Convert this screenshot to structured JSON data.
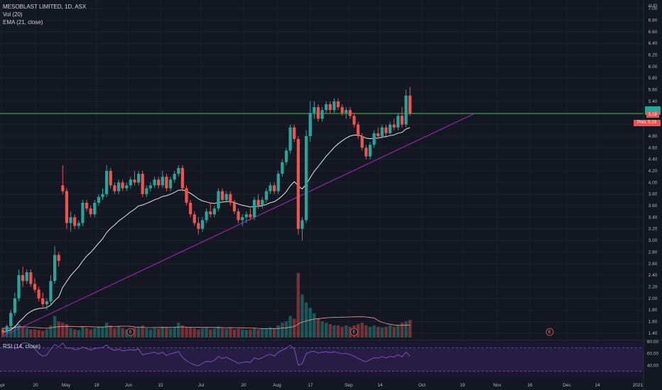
{
  "header": {
    "symbol_line": "MESOBLAST LIMITED, 1D, ASX",
    "volume_line": "Vol (20)",
    "ema_line": "EMA (21, close)"
  },
  "rsi_header": "RSI (14, close)",
  "colors": {
    "background": "#131722",
    "grid": "#1e222d",
    "up": "#26a69a",
    "down": "#ef5350",
    "ema": "#e6e6e6",
    "trendline": "#9c27b0",
    "horizontal_line": "#4caf50",
    "rsi": "#7e57c2",
    "volume_ma": "#ef9a9a"
  },
  "chart_data": {
    "type": "candlestick",
    "currency": "AUD",
    "y_ticks": [
      "7.00",
      "6.80",
      "6.60",
      "6.40",
      "6.20",
      "6.00",
      "5.80",
      "5.60",
      "5.40",
      "5.20",
      "5.00",
      "4.80",
      "4.60",
      "4.40",
      "4.20",
      "4.00",
      "3.80",
      "3.60",
      "3.40",
      "3.20",
      "3.00",
      "2.80",
      "2.60",
      "2.40",
      "2.20",
      "2.00",
      "1.80",
      "1.60",
      "1.40"
    ],
    "y_range": [
      1.3,
      7.1
    ],
    "x_ticks": [
      "Apr",
      "20",
      "May",
      "18",
      "Jun",
      "15",
      "Jul",
      "20",
      "Aug",
      "17",
      "Sep",
      "14",
      "Oct",
      "19",
      "Nov",
      "16",
      "Dec",
      "14",
      "2021"
    ],
    "price_tag": "5.19",
    "prev_tag": "Prev. 5.19",
    "horizontal_level": 5.19,
    "trendline": {
      "from": {
        "bar": 0,
        "price": 1.35
      },
      "to": {
        "bar": 126,
        "price": 5.19
      }
    },
    "earnings_markers": [
      {
        "label": "E",
        "bar": 32
      },
      {
        "label": "E",
        "bar": 88
      },
      {
        "label": "E",
        "bar": 137
      }
    ],
    "candles": [
      [
        1.45,
        1.5,
        1.38,
        1.42
      ],
      [
        1.42,
        1.55,
        1.4,
        1.52
      ],
      [
        1.52,
        1.8,
        1.48,
        1.75
      ],
      [
        1.75,
        2.1,
        1.7,
        2.0
      ],
      [
        2.0,
        2.5,
        1.95,
        2.4
      ],
      [
        2.4,
        2.55,
        2.2,
        2.3
      ],
      [
        2.3,
        2.5,
        2.25,
        2.45
      ],
      [
        2.45,
        2.5,
        2.2,
        2.25
      ],
      [
        2.25,
        2.35,
        2.1,
        2.15
      ],
      [
        2.15,
        2.2,
        1.95,
        2.0
      ],
      [
        2.0,
        2.1,
        1.85,
        1.9
      ],
      [
        1.9,
        2.0,
        1.8,
        1.95
      ],
      [
        1.95,
        2.4,
        1.9,
        2.3
      ],
      [
        2.3,
        2.9,
        2.25,
        2.75
      ],
      [
        2.75,
        2.8,
        2.55,
        2.65
      ],
      [
        3.95,
        4.3,
        3.8,
        3.85
      ],
      [
        3.85,
        3.9,
        3.2,
        3.3
      ],
      [
        3.3,
        3.5,
        3.15,
        3.4
      ],
      [
        3.4,
        3.45,
        3.2,
        3.25
      ],
      [
        3.25,
        3.35,
        3.2,
        3.3
      ],
      [
        3.3,
        3.7,
        3.25,
        3.65
      ],
      [
        3.65,
        3.7,
        3.5,
        3.55
      ],
      [
        3.55,
        3.6,
        3.4,
        3.45
      ],
      [
        3.45,
        3.7,
        3.4,
        3.65
      ],
      [
        3.65,
        3.8,
        3.6,
        3.75
      ],
      [
        3.75,
        3.9,
        3.7,
        3.8
      ],
      [
        3.8,
        4.3,
        3.75,
        4.2
      ],
      [
        4.2,
        4.25,
        3.9,
        3.95
      ],
      [
        3.95,
        4.0,
        3.8,
        3.85
      ],
      [
        3.85,
        4.05,
        3.8,
        4.0
      ],
      [
        4.0,
        4.05,
        3.85,
        3.9
      ],
      [
        3.9,
        4.0,
        3.85,
        3.95
      ],
      [
        3.95,
        4.1,
        3.9,
        4.05
      ],
      [
        4.05,
        4.2,
        3.95,
        4.0
      ],
      [
        4.0,
        4.2,
        3.95,
        4.15
      ],
      [
        4.15,
        4.2,
        3.75,
        3.8
      ],
      [
        3.8,
        3.95,
        3.75,
        3.9
      ],
      [
        3.9,
        4.0,
        3.85,
        3.95
      ],
      [
        3.95,
        4.1,
        3.9,
        4.05
      ],
      [
        4.05,
        4.1,
        3.9,
        3.95
      ],
      [
        3.95,
        4.2,
        3.9,
        4.1
      ],
      [
        4.1,
        4.15,
        3.85,
        3.9
      ],
      [
        3.9,
        4.1,
        3.85,
        4.05
      ],
      [
        4.05,
        4.2,
        4.0,
        4.15
      ],
      [
        4.15,
        4.3,
        4.1,
        4.25
      ],
      [
        4.25,
        4.3,
        3.85,
        3.9
      ],
      [
        3.9,
        3.95,
        3.6,
        3.65
      ],
      [
        3.65,
        3.7,
        3.4,
        3.45
      ],
      [
        3.45,
        3.5,
        3.25,
        3.3
      ],
      [
        3.3,
        3.4,
        3.1,
        3.2
      ],
      [
        3.2,
        3.4,
        3.15,
        3.35
      ],
      [
        3.35,
        3.55,
        3.3,
        3.5
      ],
      [
        3.5,
        3.65,
        3.4,
        3.45
      ],
      [
        3.45,
        3.6,
        3.4,
        3.55
      ],
      [
        3.55,
        3.9,
        3.5,
        3.85
      ],
      [
        3.85,
        3.9,
        3.65,
        3.7
      ],
      [
        3.7,
        3.85,
        3.65,
        3.8
      ],
      [
        3.8,
        3.85,
        3.6,
        3.65
      ],
      [
        3.65,
        3.7,
        3.45,
        3.5
      ],
      [
        3.5,
        3.55,
        3.3,
        3.35
      ],
      [
        3.35,
        3.45,
        3.25,
        3.4
      ],
      [
        3.4,
        3.5,
        3.3,
        3.45
      ],
      [
        3.45,
        3.55,
        3.35,
        3.4
      ],
      [
        3.4,
        3.75,
        3.35,
        3.7
      ],
      [
        3.7,
        3.8,
        3.55,
        3.6
      ],
      [
        3.6,
        3.75,
        3.55,
        3.7
      ],
      [
        3.7,
        3.9,
        3.65,
        3.85
      ],
      [
        3.85,
        4.0,
        3.8,
        3.95
      ],
      [
        3.95,
        4.0,
        3.8,
        3.85
      ],
      [
        3.85,
        4.2,
        3.8,
        4.15
      ],
      [
        4.15,
        4.4,
        4.1,
        4.35
      ],
      [
        4.35,
        4.6,
        4.3,
        4.55
      ],
      [
        4.55,
        5.0,
        4.5,
        4.95
      ],
      [
        4.95,
        5.0,
        4.7,
        4.75
      ],
      [
        4.75,
        4.8,
        3.1,
        3.2
      ],
      [
        3.2,
        3.4,
        3.0,
        3.35
      ],
      [
        3.35,
        4.9,
        3.3,
        4.8
      ],
      [
        4.8,
        5.4,
        4.7,
        5.2
      ],
      [
        5.2,
        5.4,
        5.1,
        5.3
      ],
      [
        5.3,
        5.35,
        5.05,
        5.1
      ],
      [
        5.1,
        5.3,
        5.05,
        5.25
      ],
      [
        5.25,
        5.4,
        5.2,
        5.35
      ],
      [
        5.35,
        5.4,
        5.2,
        5.25
      ],
      [
        5.25,
        5.45,
        5.2,
        5.4
      ],
      [
        5.4,
        5.45,
        5.25,
        5.3
      ],
      [
        5.3,
        5.35,
        5.15,
        5.2
      ],
      [
        5.2,
        5.3,
        5.1,
        5.25
      ],
      [
        5.25,
        5.3,
        5.1,
        5.15
      ],
      [
        5.15,
        5.2,
        4.95,
        5.0
      ],
      [
        5.0,
        5.05,
        4.75,
        4.8
      ],
      [
        4.8,
        4.85,
        4.55,
        4.6
      ],
      [
        4.6,
        4.65,
        4.4,
        4.45
      ],
      [
        4.45,
        4.7,
        4.4,
        4.65
      ],
      [
        4.65,
        4.9,
        4.6,
        4.85
      ],
      [
        4.85,
        4.95,
        4.75,
        4.8
      ],
      [
        4.8,
        5.0,
        4.75,
        4.95
      ],
      [
        4.95,
        5.0,
        4.8,
        4.85
      ],
      [
        4.85,
        5.05,
        4.8,
        5.0
      ],
      [
        5.0,
        5.1,
        4.9,
        4.95
      ],
      [
        4.95,
        5.2,
        4.9,
        5.15
      ],
      [
        5.15,
        5.3,
        4.95,
        5.0
      ],
      [
        5.0,
        5.6,
        4.95,
        5.5
      ],
      [
        5.5,
        5.65,
        5.15,
        5.19
      ]
    ],
    "volume_bars_relative": [
      0.35,
      0.3,
      0.4,
      0.45,
      0.5,
      0.4,
      0.35,
      0.3,
      0.3,
      0.28,
      0.25,
      0.3,
      0.45,
      0.8,
      0.6,
      0.55,
      0.5,
      0.35,
      0.3,
      0.28,
      0.4,
      0.35,
      0.3,
      0.35,
      0.4,
      0.38,
      0.55,
      0.45,
      0.35,
      0.4,
      0.35,
      0.3,
      0.35,
      0.38,
      0.4,
      0.45,
      0.35,
      0.3,
      0.35,
      0.33,
      0.4,
      0.38,
      0.35,
      0.4,
      0.55,
      0.45,
      0.4,
      0.38,
      0.35,
      0.3,
      0.33,
      0.35,
      0.3,
      0.33,
      0.4,
      0.35,
      0.33,
      0.35,
      0.3,
      0.33,
      0.3,
      0.28,
      0.3,
      0.35,
      0.3,
      0.33,
      0.35,
      0.38,
      0.35,
      0.45,
      0.55,
      0.6,
      0.8,
      0.7,
      2.4,
      1.6,
      1.3,
      1.1,
      0.9,
      0.7,
      0.6,
      0.55,
      0.5,
      0.45,
      0.45,
      0.4,
      0.45,
      0.4,
      0.45,
      0.5,
      0.55,
      0.45,
      0.4,
      0.45,
      0.4,
      0.38,
      0.4,
      0.45,
      0.4,
      0.45,
      0.55,
      0.6,
      0.65
    ],
    "rsi": {
      "levels": [
        70,
        30
      ],
      "range": [
        20,
        80
      ],
      "y_ticks": [
        "80.00",
        "60.00",
        "40.00"
      ]
    }
  }
}
